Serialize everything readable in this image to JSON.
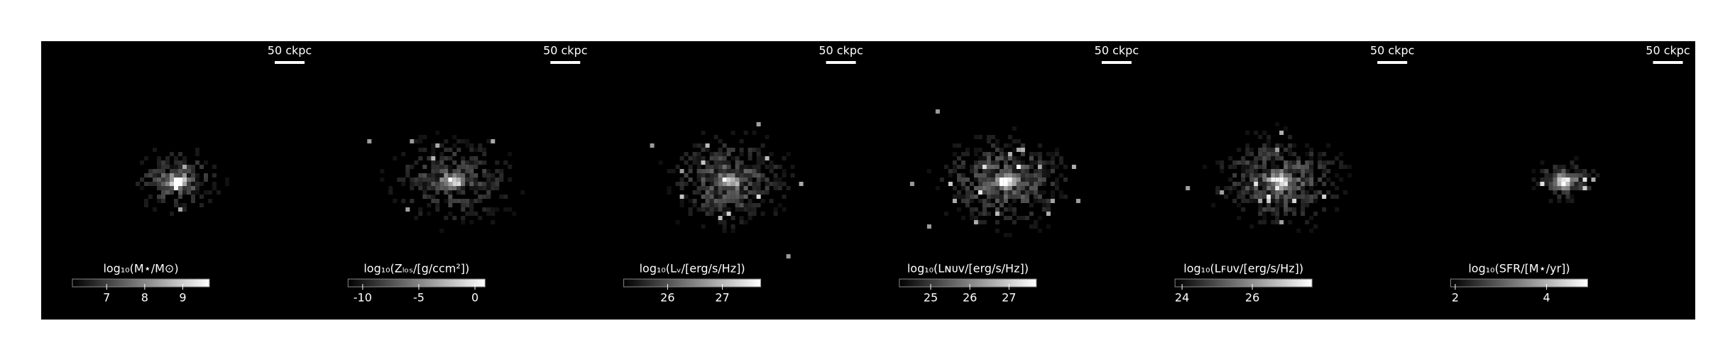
{
  "chart_data": [
    {
      "type": "image",
      "scale_bar": "50 ckpc",
      "colorbar_label": "log₁₀(M⋆/M⊙)",
      "clim": [
        6.1,
        9.7
      ],
      "cticks": [
        7,
        8,
        9
      ]
    },
    {
      "type": "image",
      "scale_bar": "50 ckpc",
      "colorbar_label": "log₁₀(Zₗₒₛ/[g/ccm²])",
      "clim": [
        -11.3,
        0.9
      ],
      "cticks": [
        -10,
        -5,
        0
      ]
    },
    {
      "type": "image",
      "scale_bar": "50 ckpc",
      "colorbar_label": "log₁₀(Lᵥ/[erg/s/Hz])",
      "clim": [
        25.2,
        27.7
      ],
      "cticks": [
        26,
        27
      ]
    },
    {
      "type": "image",
      "scale_bar": "50 ckpc",
      "colorbar_label": "log₁₀(Lɴᴜᴠ/[erg/s/Hz])",
      "clim": [
        24.2,
        27.7
      ],
      "cticks": [
        25,
        26,
        27
      ]
    },
    {
      "type": "image",
      "scale_bar": "50 ckpc",
      "colorbar_label": "log₁₀(Lꜰᴜᴠ/[erg/s/Hz])",
      "clim": [
        23.8,
        27.7
      ],
      "cticks": [
        24,
        26
      ]
    },
    {
      "type": "image",
      "scale_bar": "50 ckpc",
      "colorbar_label": "log₁₀(SFR/[M⋆/yr])",
      "clim": [
        1.9,
        4.9
      ],
      "cticks": [
        2,
        4
      ]
    }
  ]
}
